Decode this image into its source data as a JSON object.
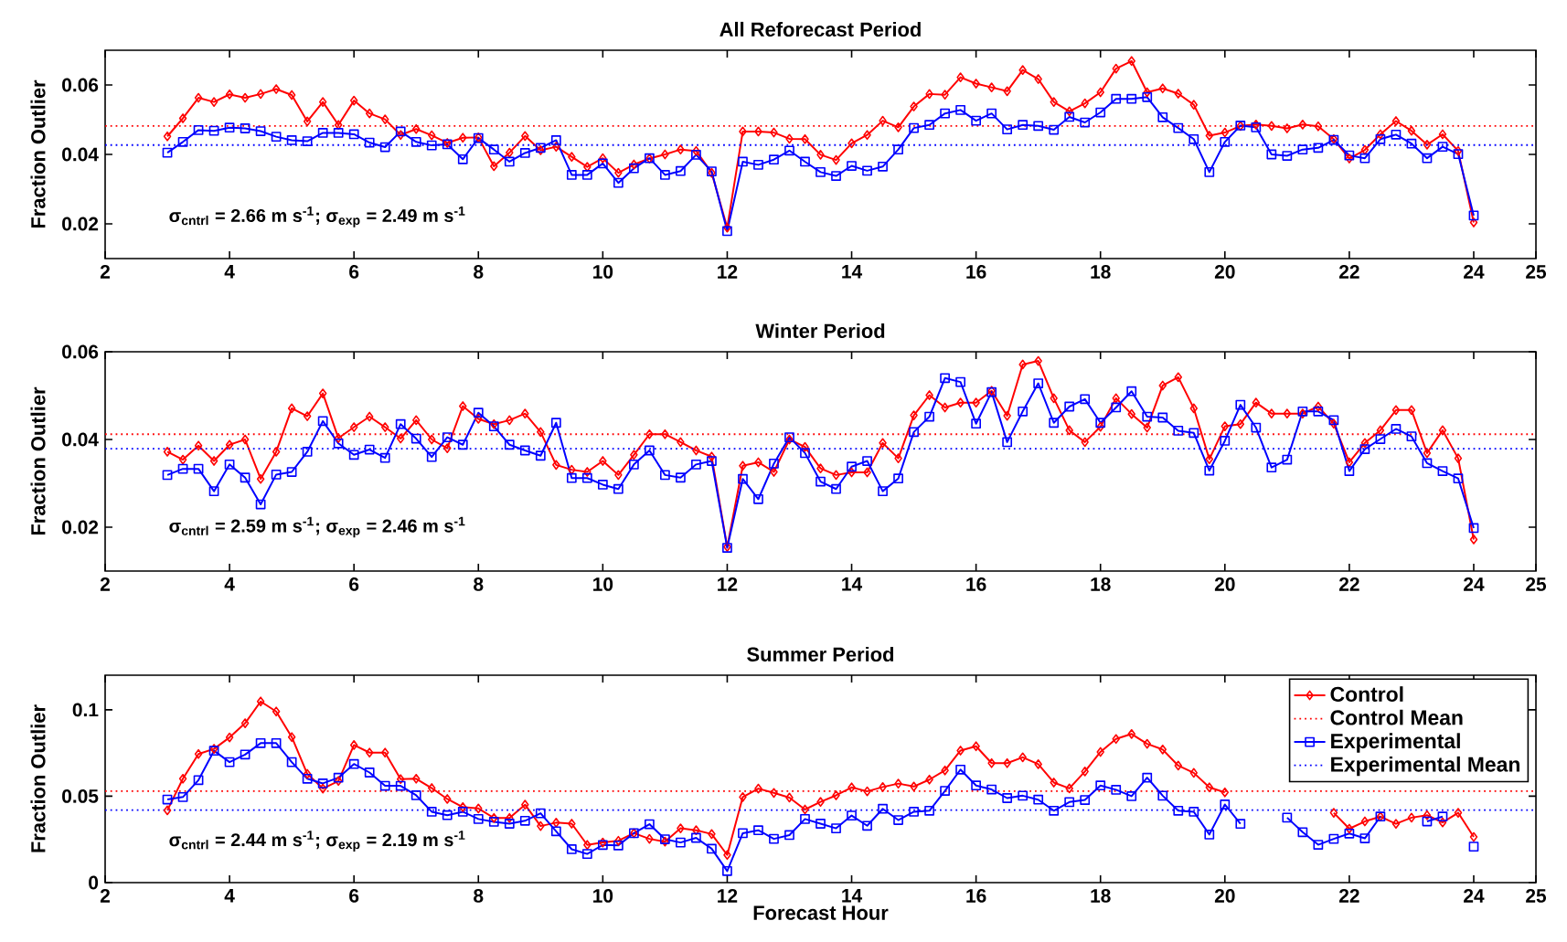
{
  "chart_data": [
    {
      "type": "line",
      "title": "All Reforecast Period",
      "ylabel": "Fraction Outlier",
      "x": [
        3,
        3.25,
        3.5,
        3.75,
        4,
        4.25,
        4.5,
        4.75,
        5,
        5.25,
        5.5,
        5.75,
        6,
        6.25,
        6.5,
        6.75,
        7,
        7.25,
        7.5,
        7.75,
        8,
        8.25,
        8.5,
        8.75,
        9,
        9.25,
        9.5,
        9.75,
        10,
        10.25,
        10.5,
        10.75,
        11,
        11.25,
        11.5,
        11.75,
        12,
        12.25,
        12.5,
        12.75,
        13,
        13.25,
        13.5,
        13.75,
        14,
        14.25,
        14.5,
        14.75,
        15,
        15.25,
        15.5,
        15.75,
        16,
        16.25,
        16.5,
        16.75,
        17,
        17.25,
        17.5,
        17.75,
        18,
        18.25,
        18.5,
        18.75,
        19,
        19.25,
        19.5,
        19.75,
        20,
        20.25,
        20.5,
        20.75,
        21,
        21.25,
        21.5,
        21.75,
        22,
        22.25,
        22.5,
        22.75,
        23,
        23.25,
        23.5,
        23.75,
        24
      ],
      "series": [
        {
          "color": "#ff0000",
          "marker": "diamond",
          "line_style": "solid",
          "values": [
            0.0452,
            0.0504,
            0.0563,
            0.0551,
            0.0573,
            0.0563,
            0.0574,
            0.0588,
            0.0571,
            0.0495,
            0.0551,
            0.0485,
            0.0555,
            0.0518,
            0.0501,
            0.0456,
            0.0473,
            0.0455,
            0.0433,
            0.0448,
            0.0449,
            0.0366,
            0.0405,
            0.0453,
            0.0412,
            0.0422,
            0.0393,
            0.0364,
            0.0389,
            0.0347,
            0.0371,
            0.0388,
            0.04,
            0.0414,
            0.041,
            0.0347,
            0.0189,
            0.0466,
            0.0466,
            0.0463,
            0.0445,
            0.0444,
            0.0399,
            0.0384,
            0.0432,
            0.0456,
            0.0497,
            0.0478,
            0.0538,
            0.0574,
            0.0572,
            0.0622,
            0.0604,
            0.0593,
            0.0582,
            0.0643,
            0.0617,
            0.0551,
            0.0524,
            0.0547,
            0.0579,
            0.0647,
            0.0669,
            0.0579,
            0.059,
            0.0575,
            0.0543,
            0.0454,
            0.0463,
            0.0482,
            0.0486,
            0.0482,
            0.0475,
            0.0486,
            0.0481,
            0.0444,
            0.0388,
            0.0413,
            0.0458,
            0.0496,
            0.0468,
            0.0428,
            0.0458,
            0.041,
            0.0204
          ]
        },
        {
          "color": "#0000ff",
          "marker": "square",
          "line_style": "solid",
          "values": [
            0.0405,
            0.0436,
            0.047,
            0.0468,
            0.0477,
            0.0475,
            0.0467,
            0.0451,
            0.0441,
            0.0438,
            0.0462,
            0.0462,
            0.0458,
            0.0434,
            0.0421,
            0.0466,
            0.0436,
            0.0426,
            0.0429,
            0.0386,
            0.0447,
            0.0414,
            0.0379,
            0.0404,
            0.0419,
            0.0441,
            0.0341,
            0.0341,
            0.0374,
            0.0318,
            0.036,
            0.0389,
            0.0341,
            0.0352,
            0.0399,
            0.0351,
            0.0179,
            0.0379,
            0.037,
            0.0385,
            0.0411,
            0.0379,
            0.0349,
            0.0338,
            0.0367,
            0.0353,
            0.0365,
            0.0414,
            0.0476,
            0.0485,
            0.0518,
            0.0528,
            0.0497,
            0.0518,
            0.0472,
            0.0485,
            0.0482,
            0.0471,
            0.0508,
            0.0492,
            0.0521,
            0.056,
            0.056,
            0.0565,
            0.0507,
            0.0476,
            0.0444,
            0.0349,
            0.0436,
            0.0483,
            0.0478,
            0.04,
            0.0396,
            0.0414,
            0.0419,
            0.0442,
            0.0397,
            0.0389,
            0.0444,
            0.0457,
            0.0431,
            0.0389,
            0.0422,
            0.0401,
            0.0224
          ]
        }
      ],
      "ref_lines": [
        {
          "axis": "y",
          "value": 0.0482,
          "color": "#ff0000",
          "line_style": "dotted"
        },
        {
          "axis": "y",
          "value": 0.0427,
          "color": "#0000ff",
          "line_style": "dotted"
        }
      ],
      "annotations": [
        "σ$_{cntrl}$ = 2.66 m s$^{-1}$;  σ$_{exp}$ = 2.49 m s$^{-1}$"
      ],
      "xlim": [
        2,
        25
      ],
      "xticks": [
        2,
        4,
        6,
        8,
        10,
        12,
        14,
        16,
        18,
        20,
        22,
        24,
        25
      ],
      "ylim": [
        0.01,
        0.07
      ],
      "yticks": [
        0.02,
        0.04,
        0.06
      ]
    },
    {
      "type": "line",
      "title": "Winter Period",
      "ylabel": "Fraction Outlier",
      "x": [
        3,
        3.25,
        3.5,
        3.75,
        4,
        4.25,
        4.5,
        4.75,
        5,
        5.25,
        5.5,
        5.75,
        6,
        6.25,
        6.5,
        6.75,
        7,
        7.25,
        7.5,
        7.75,
        8,
        8.25,
        8.5,
        8.75,
        9,
        9.25,
        9.5,
        9.75,
        10,
        10.25,
        10.5,
        10.75,
        11,
        11.25,
        11.5,
        11.75,
        12,
        12.25,
        12.5,
        12.75,
        13,
        13.25,
        13.5,
        13.75,
        14,
        14.25,
        14.5,
        14.75,
        15,
        15.25,
        15.5,
        15.75,
        16,
        16.25,
        16.5,
        16.75,
        17,
        17.25,
        17.5,
        17.75,
        18,
        18.25,
        18.5,
        18.75,
        19,
        19.25,
        19.5,
        19.75,
        20,
        20.25,
        20.5,
        20.75,
        21,
        21.25,
        21.5,
        21.75,
        22,
        22.25,
        22.5,
        22.75,
        23,
        23.25,
        23.5,
        23.75,
        24
      ],
      "series": [
        {
          "color": "#ff0000",
          "marker": "diamond",
          "line_style": "solid",
          "values": [
            0.0372,
            0.0354,
            0.0386,
            0.0351,
            0.0388,
            0.04,
            0.031,
            0.0372,
            0.0471,
            0.0453,
            0.0505,
            0.0403,
            0.0428,
            0.0452,
            0.0428,
            0.0402,
            0.0444,
            0.04,
            0.038,
            0.0476,
            0.0447,
            0.0435,
            0.0444,
            0.0459,
            0.0417,
            0.0342,
            0.0331,
            0.0326,
            0.0351,
            0.0319,
            0.0365,
            0.0412,
            0.0412,
            0.0394,
            0.0375,
            0.0361,
            0.0155,
            0.034,
            0.0348,
            0.0326,
            0.04,
            0.0383,
            0.0334,
            0.0319,
            0.0325,
            0.0325,
            0.0392,
            0.0357,
            0.0455,
            0.0501,
            0.0473,
            0.0484,
            0.0484,
            0.0511,
            0.0454,
            0.0571,
            0.0579,
            0.0494,
            0.0421,
            0.0394,
            0.0429,
            0.0494,
            0.0458,
            0.0427,
            0.0523,
            0.0542,
            0.0471,
            0.0355,
            0.043,
            0.0435,
            0.0484,
            0.0459,
            0.0459,
            0.0459,
            0.0475,
            0.0436,
            0.0348,
            0.0392,
            0.0421,
            0.0467,
            0.0467,
            0.0369,
            0.0421,
            0.0357,
            0.0172
          ]
        },
        {
          "color": "#0000ff",
          "marker": "square",
          "line_style": "solid",
          "values": [
            0.0319,
            0.0333,
            0.0333,
            0.0282,
            0.0343,
            0.0313,
            0.0252,
            0.032,
            0.0326,
            0.0372,
            0.0442,
            0.0391,
            0.0365,
            0.0377,
            0.0358,
            0.0435,
            0.0402,
            0.036,
            0.0405,
            0.0388,
            0.0461,
            0.043,
            0.0388,
            0.0375,
            0.0363,
            0.0438,
            0.0312,
            0.0312,
            0.0297,
            0.0287,
            0.0343,
            0.0375,
            0.0319,
            0.0313,
            0.0343,
            0.0351,
            0.0153,
            0.031,
            0.0264,
            0.0345,
            0.0405,
            0.0369,
            0.0304,
            0.0287,
            0.0338,
            0.0351,
            0.0282,
            0.0311,
            0.0417,
            0.0452,
            0.054,
            0.0531,
            0.0436,
            0.0508,
            0.0394,
            0.0464,
            0.0528,
            0.0438,
            0.0475,
            0.0492,
            0.0438,
            0.0473,
            0.051,
            0.0452,
            0.045,
            0.042,
            0.0415,
            0.0329,
            0.0397,
            0.0479,
            0.0427,
            0.0336,
            0.0354,
            0.0464,
            0.0464,
            0.0444,
            0.0328,
            0.0378,
            0.0401,
            0.0424,
            0.0407,
            0.0346,
            0.0328,
            0.0311,
            0.0198
          ]
        }
      ],
      "ref_lines": [
        {
          "axis": "y",
          "value": 0.0412,
          "color": "#ff0000",
          "line_style": "dotted"
        },
        {
          "axis": "y",
          "value": 0.0379,
          "color": "#0000ff",
          "line_style": "dotted"
        }
      ],
      "annotations": [
        "σ$_{cntrl}$ = 2.59 m s$^{-1}$;  σ$_{exp}$ = 2.46 m s$^{-1}$"
      ],
      "xlim": [
        2,
        25
      ],
      "xticks": [
        2,
        4,
        6,
        8,
        10,
        12,
        14,
        16,
        18,
        20,
        22,
        24,
        25
      ],
      "ylim": [
        0.01,
        0.06
      ],
      "yticks": [
        0.02,
        0.04,
        0.06
      ]
    },
    {
      "type": "line",
      "title": "Summer Period",
      "xlabel": "Forecast Hour",
      "ylabel": "Fraction Outlier",
      "legend": "top right",
      "x": [
        3,
        3.25,
        3.5,
        3.75,
        4,
        4.25,
        4.5,
        4.75,
        5,
        5.25,
        5.5,
        5.75,
        6,
        6.25,
        6.5,
        6.75,
        7,
        7.25,
        7.5,
        7.75,
        8,
        8.25,
        8.5,
        8.75,
        9,
        9.25,
        9.5,
        9.75,
        10,
        10.25,
        10.5,
        10.75,
        11,
        11.25,
        11.5,
        11.75,
        12,
        12.25,
        12.5,
        12.75,
        13,
        13.25,
        13.5,
        13.75,
        14,
        14.25,
        14.5,
        14.75,
        15,
        15.25,
        15.5,
        15.75,
        16,
        16.25,
        16.5,
        16.75,
        17,
        17.25,
        17.5,
        17.75,
        18,
        18.25,
        18.5,
        18.75,
        19,
        19.25,
        19.5,
        19.75,
        20,
        20.25,
        20.5,
        20.75,
        21,
        21.25,
        21.5,
        21.75,
        22,
        22.25,
        22.5,
        22.75,
        23,
        23.25,
        23.5,
        23.75,
        24
      ],
      "series": [
        {
          "name": "Control",
          "color": "#ff0000",
          "marker": "diamond",
          "line_style": "solid",
          "values": [
            0.0418,
            0.0601,
            0.0744,
            0.0774,
            0.084,
            0.0922,
            0.1048,
            0.099,
            0.0842,
            0.0629,
            0.0544,
            0.0588,
            0.0796,
            0.0752,
            0.0752,
            0.0599,
            0.0601,
            0.0547,
            0.0484,
            0.0437,
            0.0429,
            0.0374,
            0.0374,
            0.0451,
            0.0327,
            0.0347,
            0.0341,
            0.0218,
            0.0232,
            0.0242,
            0.0286,
            0.0253,
            0.0237,
            0.0314,
            0.0303,
            0.0281,
            0.016,
            0.0495,
            0.0544,
            0.0519,
            0.0492,
            0.0423,
            0.0467,
            0.0505,
            0.0551,
            0.0528,
            0.0553,
            0.0573,
            0.0556,
            0.0596,
            0.0649,
            0.0764,
            0.0789,
            0.0691,
            0.0691,
            0.0725,
            0.0685,
            0.0579,
            0.0545,
            0.0643,
            0.0756,
            0.0831,
            0.086,
            0.0803,
            0.077,
            0.0677,
            0.0635,
            0.0551,
            0.0522,
            null,
            null,
            null,
            null,
            null,
            null,
            0.0404,
            0.0312,
            0.0354,
            0.0382,
            0.034,
            0.0376,
            0.039,
            0.0348,
            0.0404,
            0.0264
          ]
        },
        {
          "name": "Experimental",
          "color": "#0000ff",
          "marker": "square",
          "line_style": "solid",
          "values": [
            0.0481,
            0.0495,
            0.0593,
            0.0763,
            0.0697,
            0.0741,
            0.0807,
            0.0807,
            0.0697,
            0.0601,
            0.0574,
            0.0607,
            0.0686,
            0.0637,
            0.056,
            0.056,
            0.0505,
            0.041,
            0.039,
            0.041,
            0.0368,
            0.0352,
            0.0341,
            0.0358,
            0.0401,
            0.0297,
            0.0193,
            0.0166,
            0.0218,
            0.0215,
            0.0286,
            0.0338,
            0.0251,
            0.0232,
            0.0259,
            0.0196,
            0.0067,
            0.0286,
            0.0303,
            0.0253,
            0.0275,
            0.0368,
            0.0341,
            0.0314,
            0.0388,
            0.0329,
            0.0427,
            0.0362,
            0.041,
            0.0416,
            0.0531,
            0.0654,
            0.0562,
            0.0539,
            0.0489,
            0.0503,
            0.048,
            0.0416,
            0.0466,
            0.0478,
            0.0562,
            0.0537,
            0.05,
            0.0607,
            0.0503,
            0.0416,
            0.041,
            0.0278,
            0.0452,
            0.034,
            null,
            null,
            0.0376,
            0.0292,
            0.0219,
            0.0253,
            0.0284,
            0.0256,
            0.0382,
            null,
            null,
            0.0354,
            0.0382,
            null,
            0.0208
          ]
        }
      ],
      "ref_lines": [
        {
          "axis": "y",
          "value": 0.0529,
          "label": "Control Mean",
          "color": "#ff0000",
          "line_style": "dotted"
        },
        {
          "axis": "y",
          "value": 0.042,
          "label": "Experimental Mean",
          "color": "#0000ff",
          "line_style": "dotted"
        }
      ],
      "annotations": [
        "σ$_{cntrl}$ = 2.44 m s$^{-1}$;  σ$_{exp}$ = 2.19 m s$^{-1}$"
      ],
      "xlim": [
        2,
        25
      ],
      "xticks": [
        2,
        4,
        6,
        8,
        10,
        12,
        14,
        16,
        18,
        20,
        22,
        24,
        25
      ],
      "ylim": [
        0,
        0.12
      ],
      "yticks": [
        0,
        0.05,
        0.1
      ]
    }
  ]
}
